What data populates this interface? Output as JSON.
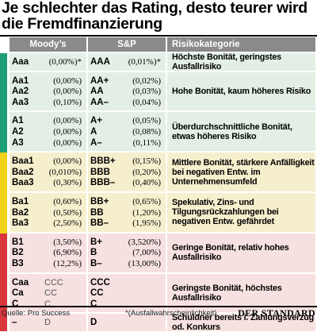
{
  "title": "Je schlechter das Rating, desto teurer wird die Fremdfinanzierung",
  "headers": {
    "moodys": "Moody’s",
    "sp": "S&P",
    "risk": "Risikokategorie"
  },
  "colors": {
    "header_bg": "#8a8a8a",
    "green": "#1e9e78",
    "yellow": "#f1d21b",
    "red": "#d9363e",
    "green_tint": "#e3efe5",
    "yellow_tint": "#f6efcd",
    "red_tint": "#f6e1e0"
  },
  "chart_data": {
    "type": "table",
    "columns": [
      "Moody’s",
      "S&P",
      "Risikokategorie"
    ],
    "groups": [
      {
        "band": "green",
        "risk": "Höchste Bonität, geringstes Ausfallrisiko",
        "rows": [
          {
            "m": "Aaa",
            "mp": "(0,00%)*",
            "s": "AAA",
            "sp": "(0,01%)*"
          }
        ]
      },
      {
        "band": "green",
        "risk": "Hohe Bonität, kaum höheres Risiko",
        "rows": [
          {
            "m": "Aa1",
            "mp": "(0,00%)",
            "s": "AA+",
            "sp": "(0,02%)"
          },
          {
            "m": "Aa2",
            "mp": "(0,00%)",
            "s": "AA",
            "sp": "(0,03%)"
          },
          {
            "m": "Aa3",
            "mp": "(0,10%)",
            "s": "AA–",
            "sp": "(0,04%)"
          }
        ]
      },
      {
        "band": "green",
        "risk": "Überdurchschnittliche Bonität, etwas höheres Risiko",
        "rows": [
          {
            "m": "A1",
            "mp": "(0,00%)",
            "s": "A+",
            "sp": "(0,05%)"
          },
          {
            "m": "A2",
            "mp": "(0,00%)",
            "s": "A",
            "sp": "(0,08%)"
          },
          {
            "m": "A3",
            "mp": "(0,00%)",
            "s": "A–",
            "sp": "(0,11%)"
          }
        ]
      },
      {
        "band": "yellow",
        "risk": "Mittlere Bonität, stärkere Anfälligkeit bei negativen Entw. im Unternehmensumfeld",
        "rows": [
          {
            "m": "Baa1",
            "mp": "(0,00%)",
            "s": "BBB+",
            "sp": "(0,15%)"
          },
          {
            "m": "Baa2",
            "mp": "(0,010%)",
            "s": "BBB",
            "sp": "(0,20%)"
          },
          {
            "m": "Baa3",
            "mp": "(0,30%)",
            "s": "BBB–",
            "sp": "(0,40%)"
          }
        ]
      },
      {
        "band": "yellow",
        "risk": "Spekulativ, Zins- und Tilgungsrückzahlungen bei negativen Entw. gefährdet",
        "rows": [
          {
            "m": "Ba1",
            "mp": "(0,60%)",
            "s": "BB+",
            "sp": "(0,65%)"
          },
          {
            "m": "Ba2",
            "mp": "(0,50%)",
            "s": "BB",
            "sp": "(1,20%)"
          },
          {
            "m": "Ba3",
            "mp": "(2,50%)",
            "s": "BB–",
            "sp": "(1,95%)"
          }
        ]
      },
      {
        "band": "red",
        "risk": "Geringe Bonität, relativ hohes Ausfallrisiko",
        "rows": [
          {
            "m": "B1",
            "mp": "(3,50%)",
            "s": "B+",
            "sp": "(3,520%)"
          },
          {
            "m": "B2",
            "mp": "(6,90%)",
            "s": "B",
            "sp": "(7,00%)"
          },
          {
            "m": "B3",
            "mp": "(12,2%)",
            "s": "B–",
            "sp": "(13,00%)"
          }
        ]
      },
      {
        "band": "red",
        "risk": "Geringste Bonität, höchstes Ausfallrisiko",
        "rows": [
          {
            "m": "Caa",
            "mp": "CCC",
            "s": "CCC",
            "sp": ""
          },
          {
            "m": "Ca",
            "mp": "CC",
            "s": "CC",
            "sp": ""
          },
          {
            "m": "C",
            "mp": "C",
            "s": "C",
            "sp": ""
          }
        ]
      },
      {
        "band": "red",
        "risk": "Schuldner bereits i. Zahlungsverzug od. Konkurs",
        "rows": [
          {
            "m": "–",
            "mp": "D",
            "s": "D",
            "sp": ""
          }
        ]
      }
    ]
  },
  "footer": {
    "source": "Quelle: Pro Success",
    "note": "*(Ausfallwahrscheinlichkeit)",
    "brand": "DER STANDARD"
  }
}
